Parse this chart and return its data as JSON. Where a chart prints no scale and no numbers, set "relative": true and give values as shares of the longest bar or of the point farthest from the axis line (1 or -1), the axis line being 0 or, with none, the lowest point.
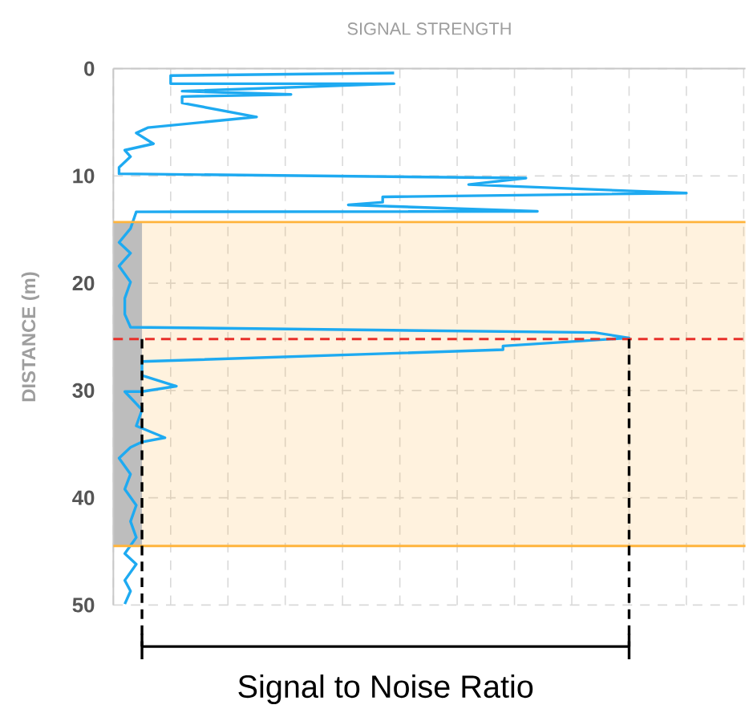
{
  "chart_data": {
    "type": "line",
    "orientation": "horizontal",
    "relative": true,
    "title": "SIGNAL STRENGTH",
    "ylabel": "DISTANCE (m)",
    "ylim": [
      50,
      0
    ],
    "yticks": [
      0,
      10,
      20,
      30,
      40,
      50
    ],
    "grid": true,
    "x": [
      0.4,
      0.65,
      1.4,
      1.4,
      2.1,
      2.4,
      2.6,
      3.2,
      4.5,
      5.5,
      6.0,
      7.0,
      7.6,
      8.2,
      9.2,
      9.8,
      10.2,
      10.8,
      11.6,
      11.95,
      12.45,
      12.7,
      13.3,
      13.35,
      14.9,
      16.2,
      17.2,
      18.4,
      19.9,
      21.4,
      22.9,
      24.1,
      24.6,
      25.1,
      25.85,
      26.2,
      27.3,
      28.6,
      29.6,
      30.1,
      30.1,
      31.8,
      33.3,
      34.4,
      34.8,
      35.3,
      36.3,
      37.8,
      39.2,
      40.7,
      42.2,
      43.7,
      45.2,
      46.2,
      47.7,
      48.7,
      49.9
    ],
    "series": [
      {
        "color": "#1eaaf1",
        "values": [
          0.49,
          0.1,
          0.1,
          0.49,
          0.12,
          0.31,
          0.12,
          0.12,
          0.25,
          0.06,
          0.04,
          0.07,
          0.02,
          0.03,
          0.01,
          0.01,
          0.72,
          0.62,
          1,
          0.47,
          0.47,
          0.41,
          0.74,
          0.04,
          0.03,
          0.01,
          0.03,
          0.01,
          0.03,
          0.02,
          0.02,
          0.03,
          0.84,
          0.9,
          0.68,
          0.68,
          0.05,
          0.05,
          0.11,
          0.05,
          0.02,
          0.05,
          0.04,
          0.09,
          0.05,
          0.03,
          0.01,
          0.03,
          0.02,
          0.04,
          0.03,
          0.04,
          0.02,
          0.04,
          0.02,
          0.03,
          0.02
        ]
      }
    ],
    "ref_lines": [
      {
        "axis": "y",
        "value": 25.2,
        "color": "#e8302a",
        "line_style": "dashed"
      },
      {
        "axis": "y",
        "value": 14.3,
        "color": "#ffb43c",
        "line_style": "solid"
      },
      {
        "axis": "y",
        "value": 44.5,
        "color": "#ffb43c",
        "line_style": "solid"
      },
      {
        "axis": "x",
        "value": 0.05,
        "color": "#000000",
        "line_style": "dashed"
      },
      {
        "axis": "x",
        "value": 0.9,
        "color": "#000000",
        "line_style": "dashed"
      }
    ],
    "bands": [
      {
        "axis": "y",
        "from": 14.3,
        "to": 44.5,
        "color": "#ffb43c"
      },
      {
        "axis": "x",
        "from": 0,
        "to": 0.05,
        "color": "#bdbdbd"
      }
    ],
    "annotations": [
      "Signal to Noise Ratio"
    ]
  }
}
